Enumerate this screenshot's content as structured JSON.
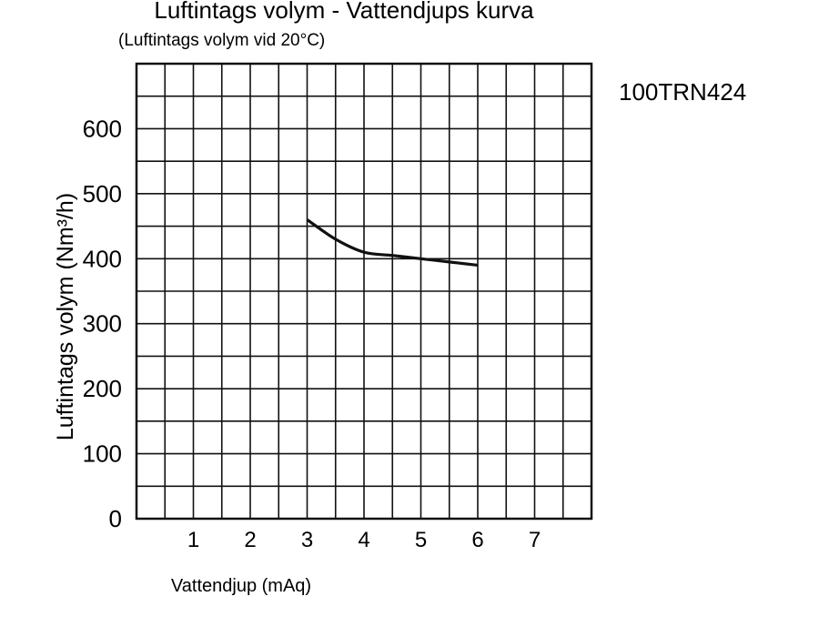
{
  "chart_data": {
    "type": "line",
    "title": "Luftintags volym - Vattendjups kurva",
    "subtitle": "(Luftintags volym vid 20°C)",
    "model_label": "100TRN424",
    "xlabel": "Vattendjup (mAq)",
    "ylabel": "Luftintags volym (Nm³/h)",
    "xlim": [
      0,
      8
    ],
    "ylim": [
      0,
      700
    ],
    "x_ticks": [
      1,
      2,
      3,
      4,
      5,
      6,
      7
    ],
    "y_ticks": [
      0,
      100,
      200,
      300,
      400,
      500,
      600
    ],
    "grid": true,
    "series": [
      {
        "x": [
          3.0,
          3.5,
          4.0,
          4.5,
          5.0,
          5.5,
          6.0
        ],
        "y": [
          460,
          430,
          410,
          405,
          400,
          395,
          390
        ]
      }
    ],
    "colors": {
      "line": "#111111",
      "grid": "#111111"
    }
  }
}
